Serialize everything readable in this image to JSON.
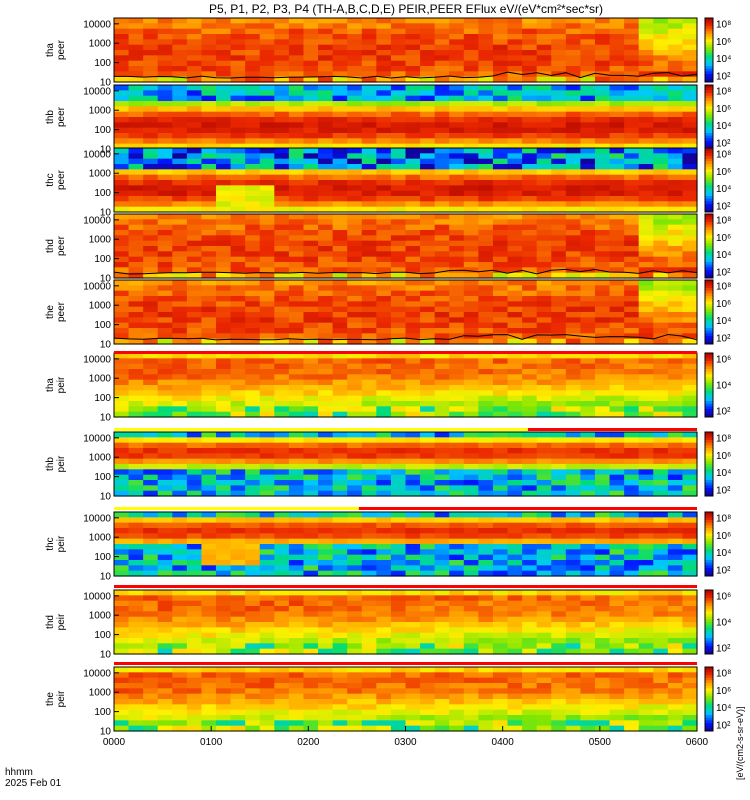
{
  "title": "P5, P1, P2, P3, P4 (TH-A,B,C,D,E) PEIR,PEER EFlux eV/(eV*cm²*sec*sr)",
  "footer": {
    "axis_name": "hhmm",
    "date": "2025 Feb 01"
  },
  "colorbar_label": "[eV/(cm2-s-sr-eV)]",
  "colors": {
    "background": "#ffffff",
    "flag_red": "#ff0000",
    "flag_yellow": "#ffff00",
    "flag_black": "#000000"
  },
  "chart_data": {
    "type": "heatmap",
    "x_ticks": [
      "0000",
      "0100",
      "0200",
      "0300",
      "0400",
      "0500",
      "0600"
    ],
    "xlim": [
      "0000",
      "0600"
    ],
    "yscale": "log",
    "ylim": [
      10,
      20000
    ],
    "y_tick_labels": [
      "10",
      "100",
      "1000",
      "10000"
    ],
    "colorscale": "rainbow",
    "colorbar_scale": "log",
    "panels": [
      {
        "probe": "tha",
        "species": "peer",
        "cbar_ticks": [
          "10⁸",
          "10⁶",
          "10⁴",
          "10²"
        ],
        "profile": "ele_hot",
        "trace": true
      },
      {
        "probe": "thb",
        "species": "peer",
        "cbar_ticks": [
          "10⁸",
          "10⁶",
          "10⁴",
          "10²"
        ],
        "profile": "ele_band"
      },
      {
        "probe": "thc",
        "species": "peer",
        "cbar_ticks": [
          "10⁸",
          "10⁶",
          "10⁴",
          "10²"
        ],
        "profile": "ele_band_low"
      },
      {
        "probe": "thd",
        "species": "peer",
        "cbar_ticks": [
          "10⁸",
          "10⁶",
          "10⁴",
          "10²"
        ],
        "profile": "ele_hot",
        "trace": true
      },
      {
        "probe": "the",
        "species": "peer",
        "cbar_ticks": [
          "10⁸",
          "10⁶",
          "10⁴",
          "10²"
        ],
        "profile": "ele_hot",
        "trace": true
      },
      {
        "probe": "tha",
        "species": "peir",
        "cbar_ticks": [
          "10⁶",
          "10⁴",
          "10²"
        ],
        "profile": "ion"
      },
      {
        "probe": "thb",
        "species": "peir",
        "cbar_ticks": [
          "10⁸",
          "10⁶",
          "10⁴",
          "10²"
        ],
        "profile": "ion_band"
      },
      {
        "probe": "thc",
        "species": "peir",
        "cbar_ticks": [
          "10⁸",
          "10⁶",
          "10⁴",
          "10²"
        ],
        "profile": "ion_band2"
      },
      {
        "probe": "thd",
        "species": "peir",
        "cbar_ticks": [
          "10⁶",
          "10⁴",
          "10²"
        ],
        "profile": "ion"
      },
      {
        "probe": "the",
        "species": "peir",
        "cbar_ticks": [
          "10⁸",
          "10⁶",
          "10⁴",
          "10²"
        ],
        "profile": "ion"
      }
    ]
  }
}
